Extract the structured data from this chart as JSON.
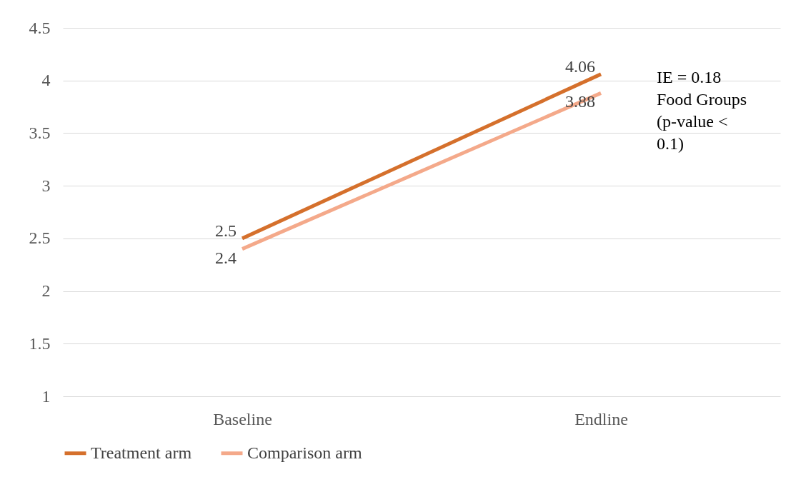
{
  "chart_data": {
    "type": "line",
    "categories": [
      "Baseline",
      "Endline"
    ],
    "series": [
      {
        "name": "Treatment arm",
        "color": "#d5702c",
        "values": [
          2.5,
          4.06
        ]
      },
      {
        "name": "Comparison arm",
        "color": "#f4a98a",
        "values": [
          2.4,
          3.88
        ]
      }
    ],
    "ylim": [
      1,
      4.5
    ],
    "yticks": [
      1,
      1.5,
      2,
      2.5,
      3,
      3.5,
      4,
      4.5
    ],
    "grid": "y",
    "legend": "bottom",
    "data_labels": true,
    "marker": "none",
    "line_style": "solid",
    "annotations": [
      "IE = 0.18\nFood Groups\n(p-value <\n0.1)"
    ]
  }
}
